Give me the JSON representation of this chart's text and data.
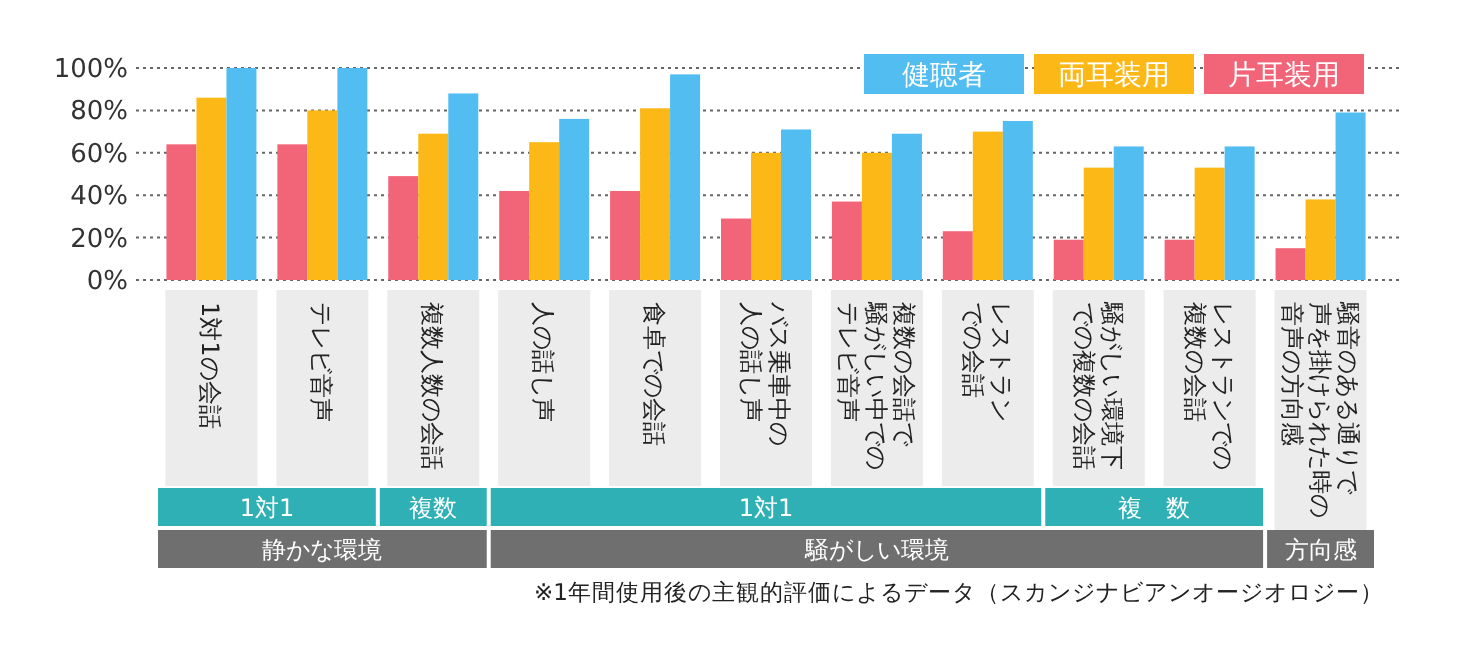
{
  "chart_data": {
    "type": "bar",
    "categories": [
      "1対1の会話",
      "テレビ音声",
      "複数人数の会話",
      "人の話し声",
      "食卓での会話",
      "バス乗車中の人の話し声",
      "複数の会話で騒がしい中でのテレビ音声",
      "レストランでの会話",
      "騒がしい環境下での複数の会話",
      "レストランでの複数の会話",
      "騒音のある通りで声を掛けられた時の音声の方向感"
    ],
    "series": [
      {
        "name": "片耳装用",
        "color": "#f26478",
        "values": [
          64,
          64,
          49,
          42,
          42,
          29,
          37,
          23,
          19,
          19,
          15
        ]
      },
      {
        "name": "両耳装用",
        "color": "#fbb817",
        "values": [
          86,
          80,
          69,
          65,
          81,
          60,
          60,
          70,
          53,
          53,
          38
        ]
      },
      {
        "name": "健聴者",
        "color": "#52bdf0",
        "values": [
          100,
          100,
          88,
          76,
          97,
          71,
          69,
          75,
          63,
          63,
          79
        ]
      }
    ],
    "ylim": [
      0,
      100
    ],
    "yticks": [
      {
        "value": 0,
        "label": "0%"
      },
      {
        "value": 20,
        "label": "20%"
      },
      {
        "value": 40,
        "label": "40%"
      },
      {
        "value": 60,
        "label": "60%"
      },
      {
        "value": 80,
        "label": "80%"
      },
      {
        "value": 100,
        "label": "100%"
      }
    ],
    "grid": "y",
    "legend": "top right",
    "annotations": [
      "1対1",
      "複数",
      "1対1",
      "複　数",
      "静かな環境",
      "騒がしい環境",
      "方向感",
      "※1年間使用後の主観的評価によるデータ（スカンジナビアンオージオロジー）"
    ]
  }
}
